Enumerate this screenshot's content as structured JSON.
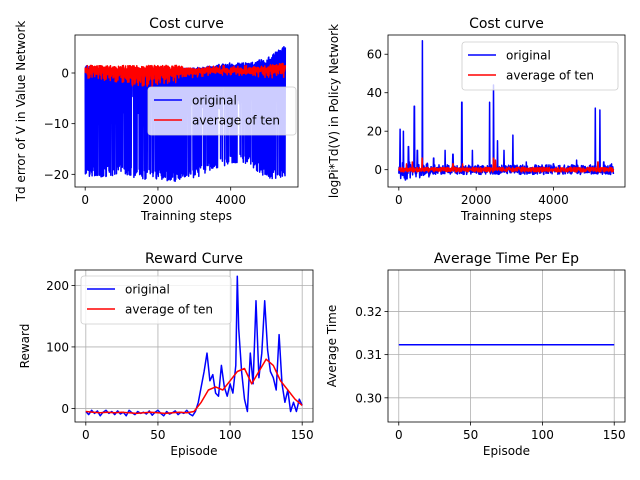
{
  "chart_data": [
    {
      "type": "line",
      "title": "Cost curve",
      "xlabel": "Trainning steps",
      "ylabel": "Td error of V in Value Network",
      "xlim": [
        -280,
        5850
      ],
      "ylim": [
        -22.5,
        7.5
      ],
      "xticks": [
        0,
        2000,
        4000
      ],
      "yticks": [
        -20,
        -10,
        0
      ],
      "grid": false,
      "legend": "center-right",
      "series": [
        {
          "name": "original",
          "color": "#0000ff",
          "style": "dense-oscillation",
          "x": [
            0,
            500,
            1000,
            1500,
            2000,
            2500,
            3000,
            3500,
            4000,
            4500,
            5000,
            5500
          ],
          "upper": [
            1.5,
            1,
            1,
            1,
            1,
            1,
            1,
            1.5,
            2,
            2,
            3,
            6
          ],
          "lower": [
            -20.5,
            -20.5,
            -20,
            -21,
            -21,
            -21.5,
            -21,
            -19,
            -18,
            -18,
            -21,
            -21
          ]
        },
        {
          "name": "average of ten",
          "color": "#ff0000",
          "style": "dense-oscillation",
          "x": [
            0,
            500,
            1000,
            1500,
            2000,
            2500,
            3000,
            3500,
            4000,
            4500,
            5000,
            5500
          ],
          "upper": [
            1.5,
            1.5,
            1.5,
            1.5,
            1.5,
            1.5,
            1,
            1,
            1,
            1,
            1.5,
            2
          ],
          "lower": [
            -1,
            -1.5,
            -2,
            -3,
            -2.5,
            -2,
            -1,
            -0.5,
            -0.5,
            -0.5,
            -1,
            -1
          ]
        }
      ]
    },
    {
      "type": "line",
      "title": "Cost curve",
      "xlabel": "Trainning steps",
      "ylabel": "logPi*Td(V) in Policy Network",
      "xlim": [
        -280,
        5850
      ],
      "ylim": [
        -9,
        70
      ],
      "xticks": [
        0,
        2000,
        4000
      ],
      "yticks": [
        0,
        20,
        40,
        60
      ],
      "grid": false,
      "legend": "top-right",
      "series": [
        {
          "name": "original",
          "color": "#0000ff",
          "style": "noisy-spikes",
          "spikes": [
            [
              30,
              21
            ],
            [
              120,
              20
            ],
            [
              250,
              12
            ],
            [
              400,
              33
            ],
            [
              480,
              10
            ],
            [
              610,
              67
            ],
            [
              900,
              6
            ],
            [
              1200,
              10
            ],
            [
              1400,
              8
            ],
            [
              1630,
              35
            ],
            [
              1900,
              10
            ],
            [
              2350,
              35
            ],
            [
              2450,
              44
            ],
            [
              2550,
              15
            ],
            [
              2720,
              10
            ],
            [
              2950,
              18
            ],
            [
              3300,
              4
            ],
            [
              4000,
              3
            ],
            [
              4600,
              5
            ],
            [
              5080,
              32
            ],
            [
              5200,
              31
            ],
            [
              5300,
              4
            ],
            [
              5500,
              3
            ]
          ]
        },
        {
          "name": "average of ten",
          "color": "#ff0000",
          "style": "noisy-spikes",
          "spikes": [
            [
              200,
              3
            ],
            [
              350,
              4
            ],
            [
              600,
              6
            ],
            [
              1400,
              3
            ],
            [
              1650,
              3
            ],
            [
              2450,
              6
            ],
            [
              2500,
              5
            ],
            [
              5150,
              4
            ]
          ]
        }
      ]
    },
    {
      "type": "line",
      "title": "Reward Curve",
      "xlabel": "Episode",
      "ylabel": "Reward",
      "xlim": [
        -7.5,
        157.5
      ],
      "ylim": [
        -22,
        225
      ],
      "xticks": [
        0,
        50,
        100,
        150
      ],
      "yticks": [
        0,
        100,
        200
      ],
      "grid": true,
      "legend": "top-left",
      "series": [
        {
          "name": "original",
          "color": "#0000ff",
          "x": [
            0,
            2,
            4,
            6,
            8,
            10,
            12,
            14,
            16,
            18,
            20,
            22,
            24,
            26,
            28,
            30,
            32,
            34,
            36,
            38,
            40,
            42,
            44,
            46,
            48,
            50,
            52,
            54,
            56,
            58,
            60,
            62,
            64,
            66,
            68,
            70,
            72,
            74,
            76,
            78,
            80,
            82,
            84,
            86,
            88,
            90,
            92,
            94,
            96,
            98,
            100,
            102,
            104,
            105,
            106,
            108,
            110,
            112,
            114,
            116,
            118,
            120,
            122,
            124,
            126,
            128,
            130,
            132,
            134,
            136,
            138,
            140,
            142,
            144,
            146,
            148,
            150
          ],
          "y": [
            -5,
            -10,
            -3,
            -8,
            -4,
            -12,
            -6,
            -3,
            -8,
            -5,
            -10,
            -4,
            -9,
            -6,
            -12,
            -3,
            -7,
            -10,
            -5,
            -8,
            -6,
            -9,
            -4,
            -11,
            -6,
            -3,
            -8,
            -12,
            -5,
            -9,
            -7,
            -4,
            -10,
            -6,
            -8,
            -3,
            -9,
            -12,
            -5,
            10,
            35,
            60,
            90,
            45,
            55,
            25,
            20,
            70,
            35,
            20,
            40,
            25,
            70,
            215,
            130,
            60,
            15,
            -5,
            90,
            40,
            175,
            50,
            90,
            175,
            95,
            60,
            50,
            30,
            120,
            40,
            10,
            30,
            -5,
            10,
            -5,
            15,
            5
          ]
        },
        {
          "name": "average of ten",
          "color": "#ff0000",
          "x": [
            0,
            5,
            10,
            15,
            20,
            25,
            30,
            35,
            40,
            45,
            50,
            55,
            60,
            65,
            70,
            75,
            80,
            85,
            90,
            95,
            100,
            105,
            110,
            115,
            120,
            125,
            130,
            135,
            140,
            145,
            150
          ],
          "y": [
            -5,
            -6,
            -7,
            -6,
            -7,
            -6,
            -7,
            -8,
            -7,
            -6,
            -7,
            -8,
            -7,
            -6,
            -7,
            -5,
            10,
            30,
            35,
            30,
            45,
            60,
            65,
            40,
            60,
            80,
            70,
            45,
            30,
            15,
            5
          ]
        }
      ]
    },
    {
      "type": "line",
      "title": "Average Time Per Ep",
      "xlabel": "Episode",
      "ylabel": "Average Time",
      "xlim": [
        -7.5,
        157.5
      ],
      "ylim": [
        0.2944,
        0.3296
      ],
      "xticks": [
        0,
        50,
        100,
        150
      ],
      "yticks": [
        0.3,
        0.31,
        0.32
      ],
      "ytick_labels": [
        "0.30",
        "0.31",
        "0.32"
      ],
      "grid": true,
      "legend": "none",
      "series": [
        {
          "color": "#0000ff",
          "x": [
            0,
            150
          ],
          "y": [
            0.3123,
            0.3123
          ]
        }
      ]
    }
  ]
}
